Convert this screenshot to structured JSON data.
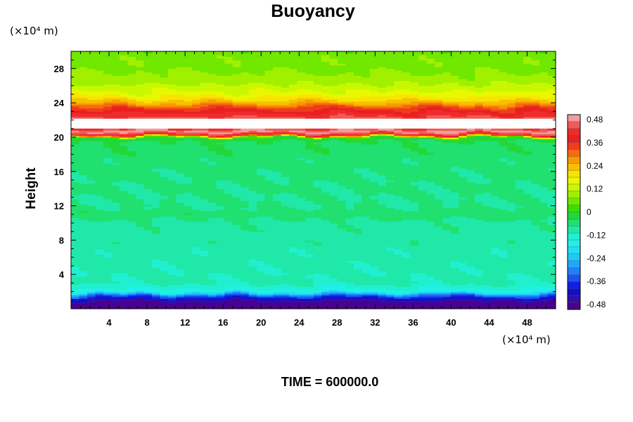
{
  "chart_data": {
    "type": "heatmap",
    "title": "Buoyancy",
    "xlabel": "",
    "ylabel": "Height",
    "x_unit": "(×10⁴ m)",
    "y_unit": "(×10⁴ m)",
    "xlim": [
      0,
      51
    ],
    "ylim": [
      0,
      30
    ],
    "x_ticks": [
      4,
      8,
      12,
      16,
      20,
      24,
      28,
      32,
      36,
      40,
      44,
      48
    ],
    "y_ticks": [
      4,
      8,
      12,
      16,
      20,
      24,
      28
    ],
    "value_range": [
      -0.48,
      0.48
    ],
    "colorbar": {
      "labels": [
        "0.48",
        "0.36",
        "0.24",
        "0.12",
        "0",
        "-0.12",
        "-0.24",
        "-0.36",
        "-0.48"
      ],
      "colors": [
        "#f49b9b",
        "#f05a5a",
        "#ee2c2c",
        "#e82020",
        "#f03c1e",
        "#f86a10",
        "#f89a00",
        "#f8c000",
        "#f8e400",
        "#e8f800",
        "#c8f800",
        "#a0f000",
        "#70e800",
        "#38e000",
        "#22d838",
        "#20e070",
        "#20e8a8",
        "#20f0d0",
        "#20f0e8",
        "#20e0f0",
        "#20c8f8",
        "#20a8f8",
        "#2080f8",
        "#2050f0",
        "#1020e0",
        "#1010c8",
        "#3010a8",
        "#4a0090"
      ]
    },
    "profile": [
      {
        "y": 0.0,
        "v": -0.48
      },
      {
        "y": 0.8,
        "v": -0.46
      },
      {
        "y": 1.2,
        "v": -0.4
      },
      {
        "y": 1.6,
        "v": -0.3
      },
      {
        "y": 2.0,
        "v": -0.16
      },
      {
        "y": 3.0,
        "v": -0.1
      },
      {
        "y": 6.0,
        "v": -0.09
      },
      {
        "y": 10.0,
        "v": -0.08
      },
      {
        "y": 11.0,
        "v": -0.05
      },
      {
        "y": 12.0,
        "v": -0.07
      },
      {
        "y": 16.0,
        "v": -0.06
      },
      {
        "y": 19.5,
        "v": -0.04
      },
      {
        "y": 20.0,
        "v": 0.0
      },
      {
        "y": 20.2,
        "v": 0.3
      },
      {
        "y": 20.4,
        "v": 0.4
      },
      {
        "y": 20.7,
        "v": 0.47
      },
      {
        "y": 21.0,
        "v": 0.4
      },
      {
        "y": 22.3,
        "v": 0.42
      },
      {
        "y": 22.8,
        "v": 0.38
      },
      {
        "y": 23.4,
        "v": 0.33
      },
      {
        "y": 24.0,
        "v": 0.24
      },
      {
        "y": 24.6,
        "v": 0.18
      },
      {
        "y": 25.5,
        "v": 0.13
      },
      {
        "y": 26.5,
        "v": 0.09
      },
      {
        "y": 28.0,
        "v": 0.06
      },
      {
        "y": 30.0,
        "v": 0.05
      }
    ],
    "blank_band": {
      "from": 21.0,
      "to": 22.2
    },
    "time_label": "TIME = 600000.0"
  }
}
